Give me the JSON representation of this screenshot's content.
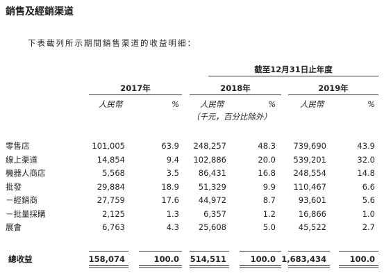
{
  "title": "銷售及經銷渠道",
  "intro": "下表載列所示期間銷售渠道的收益明細：",
  "table": {
    "period_header": "截至12月31日止年度",
    "years": [
      "2017年",
      "2018年",
      "2019年"
    ],
    "subheaders": [
      [
        "人民幣",
        "%"
      ],
      [
        "人民幣",
        "%"
      ],
      [
        "人民幣",
        "%"
      ]
    ],
    "unit_note": "（千元，百分比除外）",
    "rows": [
      [
        "零售店",
        "101,005",
        "63.9",
        "248,257",
        "48.3",
        "739,690",
        "43.9"
      ],
      [
        "線上渠道",
        "14,854",
        "9.4",
        "102,886",
        "20.0",
        "539,201",
        "32.0"
      ],
      [
        "機器人商店",
        "5,568",
        "3.5",
        "86,431",
        "16.8",
        "248,554",
        "14.8"
      ],
      [
        "批發",
        "29,884",
        "18.9",
        "51,329",
        "9.9",
        "110,467",
        "6.6"
      ],
      [
        "－經銷商",
        "27,759",
        "17.6",
        "44,972",
        "8.7",
        "93,601",
        "5.6"
      ],
      [
        "－批量採購",
        "2,125",
        "1.3",
        "6,357",
        "1.2",
        "16,866",
        "1.0"
      ],
      [
        "展會",
        "6,763",
        "4.3",
        "25,608",
        "5.0",
        "45,522",
        "2.7"
      ]
    ],
    "total": [
      "總收益",
      "158,074",
      "100.0",
      "514,511",
      "100.0",
      "1,683,434",
      "100.0"
    ]
  }
}
